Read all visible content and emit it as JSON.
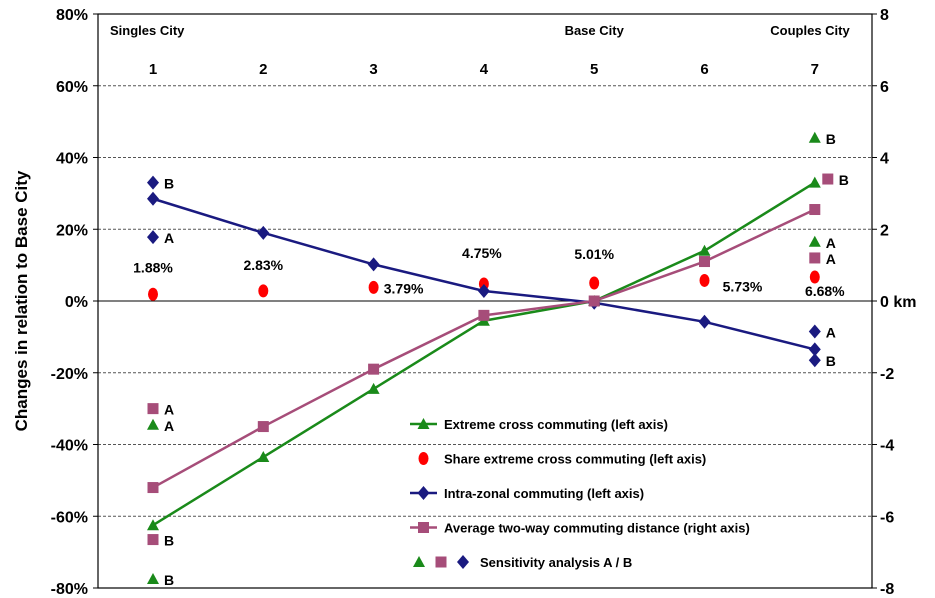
{
  "chart_data": {
    "type": "line",
    "ylabel": "Changes in relation to Base City",
    "left_axis": {
      "range": [
        -80,
        80
      ],
      "ticks": [
        80,
        60,
        40,
        20,
        0,
        -20,
        -40,
        -60,
        -80
      ],
      "tick_labels": [
        "80%",
        "60%",
        "40%",
        "20%",
        "0%",
        "-20%",
        "-40%",
        "-60%",
        "-80%"
      ]
    },
    "right_axis": {
      "range": [
        -8,
        8
      ],
      "ticks": [
        8,
        6,
        4,
        2,
        0,
        -2,
        -4,
        -6,
        -8
      ],
      "tick_labels": [
        "8",
        "6",
        "4",
        "2",
        "0 km",
        "-2",
        "-4",
        "-6",
        "-8"
      ]
    },
    "categories": [
      "1",
      "2",
      "3",
      "4",
      "5",
      "6",
      "7"
    ],
    "top_labels": [
      {
        "text": "Singles City",
        "at": "1"
      },
      {
        "text": "Base City",
        "at": "5"
      },
      {
        "text": "Couples City",
        "at": "7"
      }
    ],
    "grid": "horizontal dashed",
    "series": [
      {
        "name": "Extreme cross commuting (left axis)",
        "axis": "left",
        "color": "#1a8a1a",
        "marker": "triangle",
        "values": [
          -62.5,
          -43.5,
          -24.5,
          -5.5,
          0,
          14,
          33
        ]
      },
      {
        "name": "Share extreme cross commuting (left axis)",
        "axis": "left",
        "color": "#ff0000",
        "marker": "ellipse",
        "line": false,
        "values": [
          1.88,
          2.83,
          3.79,
          4.75,
          5.01,
          5.73,
          6.68
        ],
        "labels": [
          "1.88%",
          "2.83%",
          "3.79%",
          "4.75%",
          "5.01%",
          "5.73%",
          "6.68%"
        ]
      },
      {
        "name": "Intra-zonal commuting (left axis)",
        "axis": "left",
        "color": "#1a1a80",
        "marker": "diamond",
        "values": [
          28.5,
          19,
          10.2,
          2.8,
          -0.5,
          -5.8,
          -13.5
        ]
      },
      {
        "name": "Average two-way commuting distance (right axis)",
        "axis": "right",
        "color": "#a64d79",
        "marker": "square",
        "values": [
          -5.2,
          -3.5,
          -1.9,
          -0.4,
          0,
          1.1,
          2.55
        ]
      }
    ],
    "sensitivity": {
      "legend_label": "Sensitivity analysis  A  /  B",
      "points": [
        {
          "x": "1",
          "series": "intra",
          "label": "B",
          "value": 33
        },
        {
          "x": "1",
          "series": "intra",
          "label": "A",
          "value": 17.8
        },
        {
          "x": "1",
          "series": "distance",
          "label": "A",
          "value": -3.0
        },
        {
          "x": "1",
          "series": "extreme",
          "label": "A",
          "value": -34.5
        },
        {
          "x": "1",
          "series": "distance",
          "label": "B",
          "value": -6.65
        },
        {
          "x": "1",
          "series": "extreme",
          "label": "B",
          "value": -77.5
        },
        {
          "x": "7",
          "series": "extreme",
          "label": "B",
          "value": 45.5
        },
        {
          "x": "7",
          "series": "distance",
          "label": "B",
          "value": 3.4
        },
        {
          "x": "7",
          "series": "extreme",
          "label": "A",
          "value": 16.5
        },
        {
          "x": "7",
          "series": "distance",
          "label": "A",
          "value": 1.2
        },
        {
          "x": "7",
          "series": "intra",
          "label": "A",
          "value": -8.5
        },
        {
          "x": "7",
          "series": "intra",
          "label": "B",
          "value": -16.5
        }
      ]
    }
  }
}
